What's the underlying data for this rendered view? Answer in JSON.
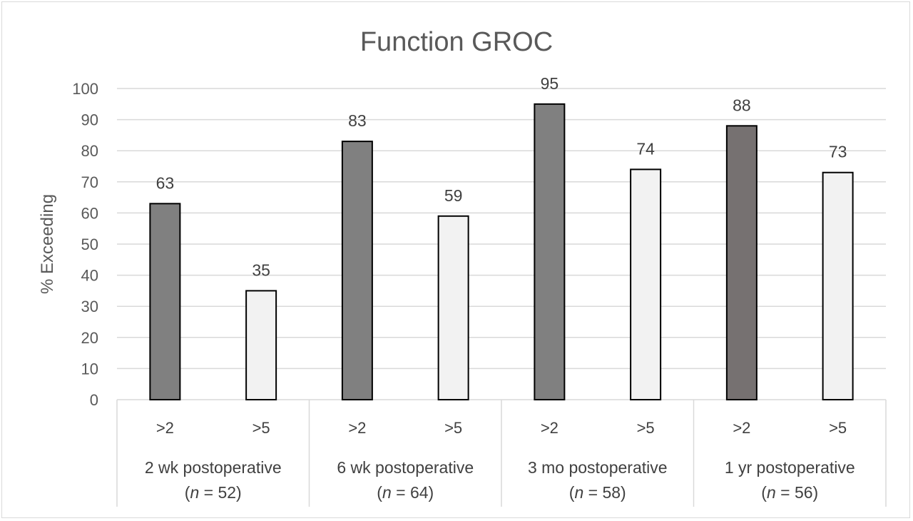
{
  "chart_data": {
    "type": "bar",
    "title": "Function GROC",
    "ylabel": "% Exceeding",
    "xlabel": "",
    "ylim": [
      0,
      100
    ],
    "yticks": [
      0,
      10,
      20,
      30,
      40,
      50,
      60,
      70,
      80,
      90,
      100
    ],
    "grid": true,
    "groups": [
      {
        "label": "2 wk postoperative",
        "n_prefix": "(",
        "n_italic": "n",
        "n_suffix": " = 52)",
        "bars": [
          {
            "label": ">2",
            "value": 63,
            "color": "#808080"
          },
          {
            "label": ">5",
            "value": 35,
            "color": "#f2f2f2"
          }
        ]
      },
      {
        "label": "6 wk postoperative",
        "n_prefix": "(",
        "n_italic": "n",
        "n_suffix": " = 64)",
        "bars": [
          {
            "label": ">2",
            "value": 83,
            "color": "#808080"
          },
          {
            "label": ">5",
            "value": 59,
            "color": "#f2f2f2"
          }
        ]
      },
      {
        "label": "3 mo postoperative",
        "n_prefix": "(",
        "n_italic": "n",
        "n_suffix": " = 58)",
        "bars": [
          {
            "label": ">2",
            "value": 95,
            "color": "#808080"
          },
          {
            "label": ">5",
            "value": 74,
            "color": "#f2f2f2"
          }
        ]
      },
      {
        "label": "1 yr postoperative",
        "n_prefix": "(",
        "n_italic": "n",
        "n_suffix": " = 56)",
        "bars": [
          {
            "label": ">2",
            "value": 88,
            "color": "#767171"
          },
          {
            "label": ">5",
            "value": 73,
            "color": "#f2f2f2"
          }
        ]
      }
    ]
  }
}
